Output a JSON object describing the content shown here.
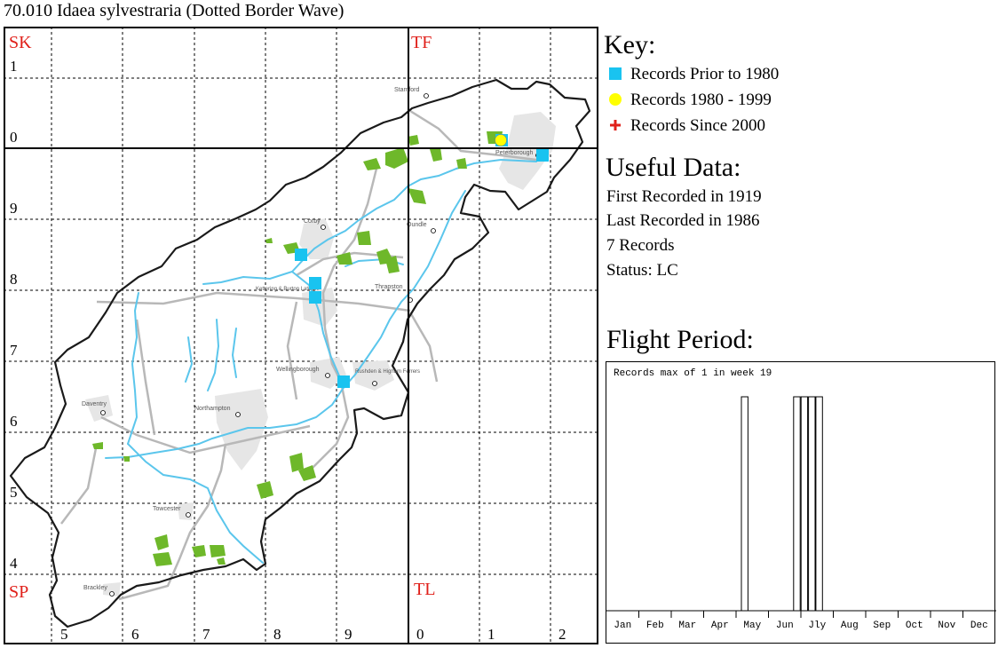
{
  "title": "70.010 Idaea sylvestraria (Dotted Border Wave)",
  "map": {
    "grid_squares": {
      "top_left": "SK",
      "top_right": "TF",
      "bottom_left": "SP",
      "bottom_right": "TL"
    },
    "northing_labels": [
      "1",
      "0",
      "9",
      "8",
      "7",
      "6",
      "5",
      "4"
    ],
    "easting_labels": [
      "5",
      "6",
      "7",
      "8",
      "9",
      "0",
      "1",
      "2"
    ],
    "towns": [
      "Stamford",
      "Peterborough",
      "Corby",
      "Oundle",
      "Kettering & Burton Latimer",
      "Thrapston",
      "Wellingborough",
      "Rushden & Higham Ferrers",
      "Daventry",
      "Northampton",
      "Towcester",
      "Brackley"
    ],
    "colors": {
      "record_pre1980": "#19c3f0",
      "record_1980_1999": "#ffff00",
      "record_since2000": "#e0201a",
      "grid_label": "#e0201a",
      "river": "#5bc6ec",
      "woodland": "#6eb82a",
      "urban": "#e6e6e6",
      "road": "#b8b8b8"
    }
  },
  "key": {
    "title": "Key:",
    "items": [
      {
        "label": "Records Prior to 1980",
        "icon": "square-icon"
      },
      {
        "label": "Records 1980 - 1999",
        "icon": "circle-icon"
      },
      {
        "label": "Records Since 2000",
        "icon": "cross-icon"
      }
    ]
  },
  "useful_data": {
    "title": "Useful Data:",
    "first": "First Recorded in 1919",
    "last": "Last Recorded in 1986",
    "count": "7 Records",
    "status": "Status: LC"
  },
  "flight": {
    "title": "Flight Period:",
    "subtitle": "Records max of 1 in week 19"
  },
  "chart_data": {
    "type": "bar",
    "title": "Records max of 1 in week 19",
    "x_axis": "week of year (1-52)",
    "month_labels": [
      "Jan",
      "Feb",
      "Mar",
      "Apr",
      "May",
      "Jun",
      "Jly",
      "Aug",
      "Sep",
      "Oct",
      "Nov",
      "Dec"
    ],
    "weeks": [
      19,
      26,
      27,
      28,
      29
    ],
    "values": [
      1,
      1,
      1,
      1,
      1
    ],
    "ylim": [
      0,
      1
    ]
  }
}
